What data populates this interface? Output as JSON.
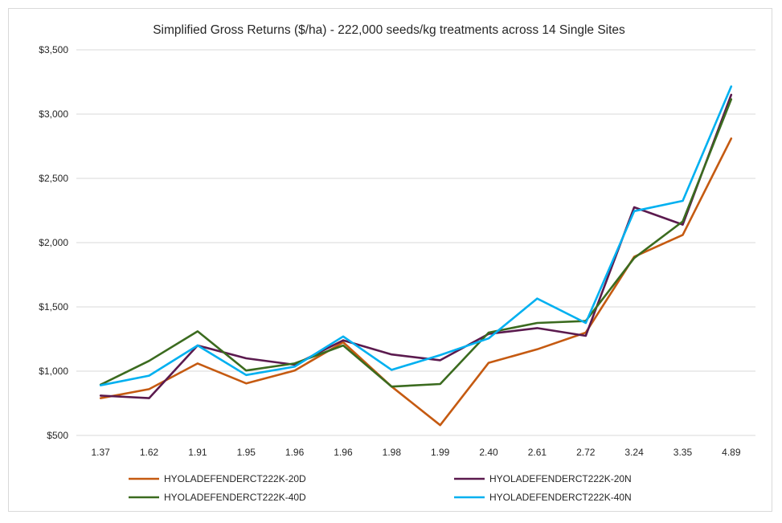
{
  "chart_data": {
    "type": "line",
    "title": "Simplified Gross Returns ($/ha) - 222,000 seeds/kg treatments across 14 Single Sites",
    "xlabel": "",
    "ylabel": "",
    "categories": [
      "1.37",
      "1.62",
      "1.91",
      "1.95",
      "1.96",
      "1.96",
      "1.98",
      "1.99",
      "2.40",
      "2.61",
      "2.72",
      "3.24",
      "3.35",
      "4.89"
    ],
    "ylim": [
      500,
      3500
    ],
    "ytick_values": [
      500,
      1000,
      1500,
      2000,
      2500,
      3000,
      3500
    ],
    "ytick_labels": [
      "$500",
      "$1,000",
      "$1,500",
      "$2,000",
      "$2,500",
      "$3,000",
      "$3,500"
    ],
    "grid": "horizontal",
    "legend_position": "bottom",
    "series": [
      {
        "name": "HYOLADEFENDERCT222K-20D",
        "color": "#c55a11",
        "values": [
          790,
          860,
          1060,
          905,
          1005,
          1225,
          880,
          580,
          1065,
          1170,
          1300,
          1890,
          2060,
          2810
        ]
      },
      {
        "name": "HYOLADEFENDERCT222K-20N",
        "color": "#5b1a4e",
        "values": [
          810,
          790,
          1200,
          1100,
          1050,
          1240,
          1130,
          1085,
          1290,
          1335,
          1275,
          2275,
          2140,
          3150
        ]
      },
      {
        "name": "HYOLADEFENDERCT222K-40D",
        "color": "#3b6b1f",
        "values": [
          895,
          1080,
          1310,
          1005,
          1060,
          1200,
          880,
          900,
          1300,
          1375,
          1390,
          1880,
          2165,
          3115
        ]
      },
      {
        "name": "HYOLADEFENDERCT222K-40N",
        "color": "#00b0f0",
        "values": [
          890,
          965,
          1200,
          970,
          1035,
          1270,
          1010,
          1125,
          1255,
          1565,
          1375,
          2245,
          2325,
          3215
        ]
      }
    ]
  }
}
